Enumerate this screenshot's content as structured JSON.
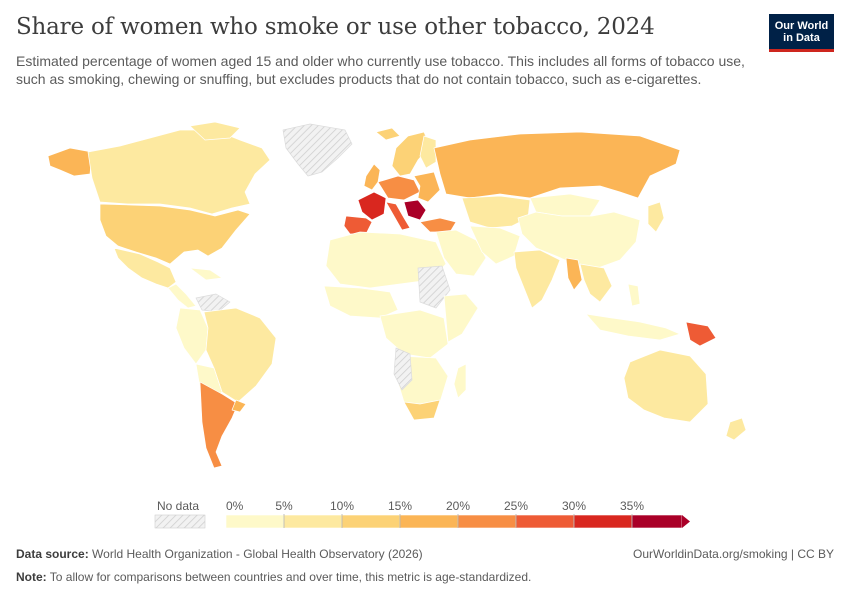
{
  "header": {
    "title": "Share of women who smoke or use other tobacco, 2024",
    "subtitle": "Estimated percentage of women aged 15 and older who currently use tobacco. This includes all forms of tobacco use, such as smoking, chewing or snuffing, but excludes products that do not contain tobacco, such as e-cigarettes."
  },
  "logo": {
    "line1": "Our World",
    "line2": "in Data"
  },
  "legend": {
    "no_data_label": "No data",
    "ticks": [
      "0%",
      "5%",
      "10%",
      "15%",
      "20%",
      "25%",
      "30%",
      "35%"
    ],
    "colors": [
      "#fef9c9",
      "#fde9a0",
      "#fcd276",
      "#fbb556",
      "#f78e44",
      "#ee5b35",
      "#d9271f",
      "#aa0028"
    ],
    "no_data_color": "#e5e5e5"
  },
  "footer": {
    "source_label": "Data source:",
    "source_text": "World Health Organization - Global Health Observatory (2026)",
    "url_text": "OurWorldinData.org/smoking | CC BY",
    "note_label": "Note:",
    "note_text": "To allow for comparisons between countries and over time, this metric is age-standardized."
  }
}
